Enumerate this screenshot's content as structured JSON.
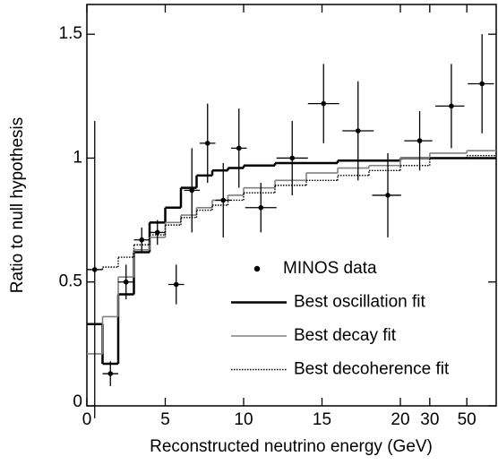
{
  "chart_data": {
    "type": "histogram-ratio",
    "x_label": "Reconstructed neutrino energy (GeV)",
    "y_label": "Ratio to null hypothesis",
    "xscale": "linear-then-log",
    "xbreak": 20,
    "xlim": [
      0,
      75
    ],
    "xticks": [
      0,
      5,
      10,
      15,
      20,
      30,
      50
    ],
    "ylim": [
      0,
      1.62
    ],
    "yticks": [
      0,
      0.5,
      1,
      1.5
    ],
    "legend": "lower right",
    "points": {
      "name": "MINOS data",
      "color": "#000000",
      "x": [
        0.5,
        1.5,
        2.5,
        3.5,
        4.5,
        5.7,
        6.7,
        7.7,
        8.7,
        9.7,
        11.1,
        13.1,
        15.1,
        17.3,
        19.2,
        26.1,
        40.4,
        61.7
      ],
      "xerr": [
        0.5,
        0.5,
        0.5,
        0.5,
        0.5,
        0.5,
        0.5,
        0.5,
        0.5,
        0.5,
        1,
        1,
        1,
        1,
        1,
        5,
        8,
        11
      ],
      "values": [
        0.55,
        0.13,
        0.5,
        0.67,
        0.7,
        0.49,
        0.87,
        1.06,
        0.83,
        1.04,
        0.8,
        1.0,
        1.22,
        1.11,
        0.85,
        1.07,
        1.21,
        1.3
      ],
      "yerr": [
        0.6,
        0.05,
        0.07,
        0.05,
        0.05,
        0.08,
        0.17,
        0.16,
        0.15,
        0.16,
        0.1,
        0.15,
        0.16,
        0.2,
        0.17,
        0.12,
        0.17,
        0.2
      ]
    },
    "bin_edges": [
      0,
      1,
      2,
      3,
      4,
      5,
      6,
      7,
      8,
      9,
      10,
      12,
      14,
      16,
      18,
      20,
      30,
      50,
      75
    ],
    "series": [
      {
        "name": "Best oscillation fit",
        "color": "#000000",
        "style": "solid",
        "width": 2.5,
        "values": [
          0.33,
          0.17,
          0.45,
          0.62,
          0.74,
          0.8,
          0.88,
          0.93,
          0.95,
          0.96,
          0.97,
          0.98,
          0.98,
          0.99,
          0.99,
          1.0,
          1.0,
          1.0
        ]
      },
      {
        "name": "Best decay fit",
        "color": "#808080",
        "style": "solid",
        "width": 1.6,
        "values": [
          0.21,
          0.36,
          0.52,
          0.63,
          0.68,
          0.74,
          0.77,
          0.8,
          0.83,
          0.85,
          0.88,
          0.91,
          0.94,
          0.96,
          0.97,
          1.0,
          1.02,
          1.03
        ]
      },
      {
        "name": "Best decoherence fit",
        "color": "#000000",
        "style": "dotted",
        "width": 1.4,
        "values": [
          0.55,
          0.56,
          0.6,
          0.65,
          0.69,
          0.73,
          0.76,
          0.79,
          0.81,
          0.83,
          0.86,
          0.89,
          0.91,
          0.93,
          0.95,
          0.97,
          1.0,
          1.01
        ]
      }
    ]
  }
}
